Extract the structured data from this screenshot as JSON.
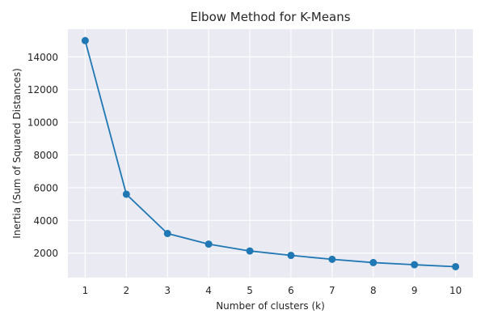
{
  "chart_data": {
    "type": "line",
    "title": "Elbow Method for K-Means",
    "xlabel": "Number of clusters (k)",
    "ylabel": "Inertia (Sum of Squared Distances)",
    "x": [
      1,
      2,
      3,
      4,
      5,
      6,
      7,
      8,
      9,
      10
    ],
    "series": [
      {
        "values": [
          15000,
          5600,
          3200,
          2550,
          2130,
          1860,
          1620,
          1420,
          1290,
          1170
        ]
      }
    ],
    "xlim": [
      0.58,
      10.42
    ],
    "ylim": [
      500,
      15700
    ],
    "xticks": [
      "1",
      "2",
      "3",
      "4",
      "5",
      "6",
      "7",
      "8",
      "9",
      "10"
    ],
    "yticks": [
      "2000",
      "4000",
      "6000",
      "8000",
      "10000",
      "12000",
      "14000"
    ],
    "grid": true,
    "marker": "circle",
    "colors": {
      "line": "#1f77b4",
      "background": "#eaeaf2",
      "grid": "#ffffff"
    }
  }
}
